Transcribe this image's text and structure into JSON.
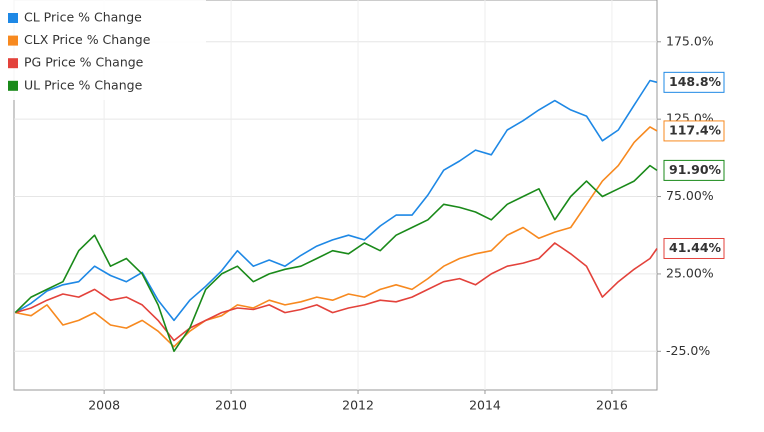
{
  "chart_data": {
    "type": "line",
    "x": [
      2006.6,
      2006.85,
      2007.1,
      2007.35,
      2007.6,
      2007.85,
      2008.1,
      2008.35,
      2008.6,
      2008.85,
      2009.1,
      2009.35,
      2009.6,
      2009.85,
      2010.1,
      2010.35,
      2010.6,
      2010.85,
      2011.1,
      2011.35,
      2011.6,
      2011.85,
      2012.1,
      2012.35,
      2012.6,
      2012.85,
      2013.1,
      2013.35,
      2013.6,
      2013.85,
      2014.1,
      2014.35,
      2014.6,
      2014.85,
      2015.1,
      2015.35,
      2015.6,
      2015.85,
      2016.1,
      2016.35,
      2016.6,
      2016.71
    ],
    "series": [
      {
        "name": "CL Price % Change",
        "color": "#1e88e5",
        "end_label": "148.8%",
        "values": [
          0,
          6,
          14,
          18,
          20,
          30,
          24,
          20,
          26,
          8,
          -5,
          8,
          17,
          27,
          40,
          30,
          34,
          30,
          37,
          43,
          47,
          50,
          47,
          56,
          63,
          63,
          76,
          92,
          98,
          105,
          102,
          118,
          124,
          131,
          137,
          131,
          127,
          111,
          118,
          134,
          150,
          148.8
        ]
      },
      {
        "name": "CLX Price % Change",
        "color": "#f7891f",
        "end_label": "117.4%",
        "values": [
          0,
          -2,
          5,
          -8,
          -5,
          0,
          -8,
          -10,
          -5,
          -12,
          -22,
          -12,
          -5,
          -2,
          5,
          3,
          8,
          5,
          7,
          10,
          8,
          12,
          10,
          15,
          18,
          15,
          22,
          30,
          35,
          38,
          40,
          50,
          55,
          48,
          52,
          55,
          70,
          85,
          95,
          110,
          120,
          117.4
        ]
      },
      {
        "name": "PG Price % Change",
        "color": "#e3423b",
        "end_label": "41.44%",
        "values": [
          0,
          3,
          8,
          12,
          10,
          15,
          8,
          10,
          5,
          -5,
          -18,
          -10,
          -5,
          0,
          3,
          2,
          5,
          0,
          2,
          5,
          0,
          3,
          5,
          8,
          7,
          10,
          15,
          20,
          22,
          18,
          25,
          30,
          32,
          35,
          45,
          38,
          30,
          10,
          20,
          28,
          35,
          41.44
        ]
      },
      {
        "name": "UL Price % Change",
        "color": "#1a8a1a",
        "end_label": "91.90%",
        "values": [
          0,
          10,
          15,
          20,
          40,
          50,
          30,
          35,
          25,
          5,
          -25,
          -10,
          15,
          25,
          30,
          20,
          25,
          28,
          30,
          35,
          40,
          38,
          45,
          40,
          50,
          55,
          60,
          70,
          68,
          65,
          60,
          70,
          75,
          80,
          60,
          75,
          85,
          75,
          80,
          85,
          95,
          91.9
        ]
      }
    ],
    "xlim": [
      2006.58,
      2016.71
    ],
    "xticks": [
      2008,
      2010,
      2012,
      2014,
      2016
    ],
    "ylim": [
      -50,
      202
    ],
    "yticks": [
      {
        "value": -25,
        "label": "-25.0%"
      },
      {
        "value": 25,
        "label": "25.00%"
      },
      {
        "value": 75,
        "label": "75.00%"
      },
      {
        "value": 125,
        "label": "125.0%"
      },
      {
        "value": 175,
        "label": "175.0%"
      }
    ],
    "grid": true,
    "legend": "upper left"
  }
}
